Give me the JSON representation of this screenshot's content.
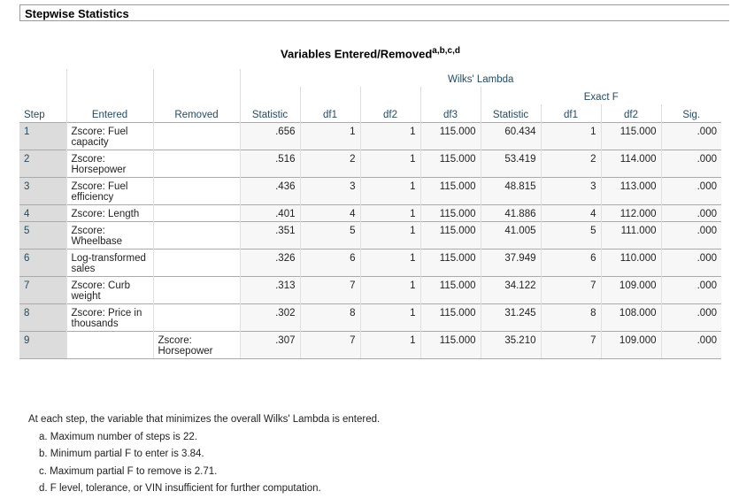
{
  "header": {
    "title": "Stepwise Statistics"
  },
  "table": {
    "title": "Variables Entered/Removed",
    "title_superscript": "a,b,c,d",
    "group_header": "Wilks' Lambda",
    "subgroup_header": "Exact F",
    "columns": [
      "Step",
      "Entered",
      "Removed",
      "Statistic",
      "df1",
      "df2",
      "df3",
      "Statistic",
      "df1",
      "df2",
      "Sig."
    ],
    "rows": [
      [
        "1",
        "Zscore:  Fuel capacity",
        null,
        ".656",
        "1",
        "1",
        "115.000",
        "60.434",
        "1",
        "115.000",
        ".000"
      ],
      [
        "2",
        "Zscore: Horsepower",
        null,
        ".516",
        "2",
        "1",
        "115.000",
        "53.419",
        "2",
        "114.000",
        ".000"
      ],
      [
        "3",
        "Zscore:  Fuel efficiency",
        null,
        ".436",
        "3",
        "1",
        "115.000",
        "48.815",
        "3",
        "113.000",
        ".000"
      ],
      [
        "4",
        "Zscore: Length",
        null,
        ".401",
        "4",
        "1",
        "115.000",
        "41.886",
        "4",
        "112.000",
        ".000"
      ],
      [
        "5",
        "Zscore: Wheelbase",
        null,
        ".351",
        "5",
        "1",
        "115.000",
        "41.005",
        "5",
        "111.000",
        ".000"
      ],
      [
        "6",
        "Log-transformed sales",
        null,
        ".326",
        "6",
        "1",
        "115.000",
        "37.949",
        "6",
        "110.000",
        ".000"
      ],
      [
        "7",
        "Zscore:  Curb weight",
        null,
        ".313",
        "7",
        "1",
        "115.000",
        "34.122",
        "7",
        "109.000",
        ".000"
      ],
      [
        "8",
        "Zscore:  Price in thousands",
        null,
        ".302",
        "8",
        "1",
        "115.000",
        "31.245",
        "8",
        "108.000",
        ".000"
      ],
      [
        "9",
        null,
        "Zscore: Horsepower",
        ".307",
        "7",
        "1",
        "115.000",
        "35.210",
        "7",
        "109.000",
        ".000"
      ]
    ]
  },
  "footnotes": [
    "At each step, the variable that minimizes the overall Wilks' Lambda is entered.",
    "a. Maximum number of steps is 22.",
    "b. Minimum partial F to enter is 3.84.",
    "c. Maximum partial F to remove is 2.71.",
    "d. F level, tolerance, or VIN insufficient for further computation."
  ]
}
